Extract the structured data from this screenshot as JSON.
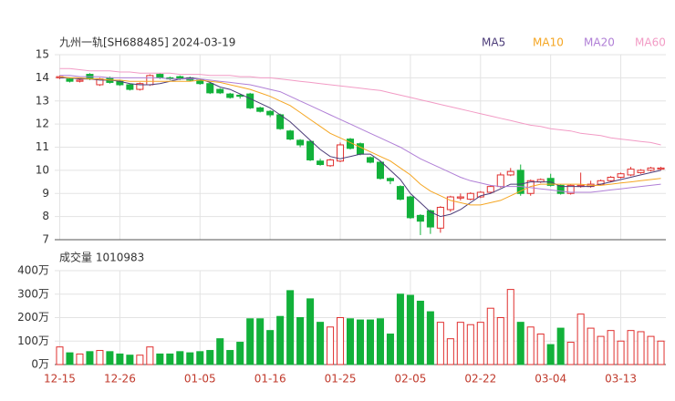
{
  "chart_data": [
    {
      "type": "candlestick",
      "title": "九州一轨[SH688485] 2024-03-19",
      "ylim": [
        7,
        15
      ],
      "yticks": [
        7,
        8,
        9,
        10,
        11,
        12,
        13,
        14,
        15
      ],
      "grid": true,
      "up_color": "#e0302f",
      "down_color": "#12b13a",
      "open": [
        14.0,
        13.95,
        13.85,
        14.15,
        13.7,
        14.0,
        13.85,
        13.7,
        13.5,
        13.7,
        14.15,
        14.0,
        14.05,
        14.0,
        13.9,
        13.75,
        13.5,
        13.3,
        13.25,
        13.3,
        12.7,
        12.55,
        12.4,
        11.7,
        11.3,
        11.25,
        10.4,
        10.2,
        10.4,
        11.35,
        11.15,
        10.55,
        10.35,
        9.65,
        9.3,
        8.85,
        8.05,
        8.25,
        7.5,
        8.3,
        8.8,
        8.75,
        8.85,
        9.05,
        9.3,
        9.8,
        10.0,
        9.0,
        9.5,
        9.65,
        9.35,
        9.0,
        9.3,
        9.3,
        9.4,
        9.55,
        9.7,
        9.8,
        9.9,
        10.0,
        10.05
      ],
      "high": [
        14.1,
        14.0,
        13.95,
        14.2,
        14.0,
        14.05,
        13.9,
        13.75,
        13.8,
        14.15,
        14.2,
        14.05,
        14.1,
        14.05,
        13.95,
        13.8,
        13.55,
        13.35,
        13.3,
        13.35,
        12.75,
        12.6,
        12.45,
        11.75,
        11.35,
        11.3,
        10.5,
        10.5,
        11.2,
        11.4,
        11.2,
        10.6,
        10.4,
        9.7,
        9.35,
        8.9,
        8.1,
        8.3,
        8.45,
        8.9,
        9.0,
        9.05,
        9.1,
        9.35,
        9.9,
        10.1,
        10.25,
        9.6,
        9.65,
        9.85,
        9.4,
        9.4,
        9.9,
        9.55,
        9.6,
        9.75,
        9.9,
        10.15,
        10.05,
        10.15,
        10.15
      ],
      "low": [
        13.95,
        13.8,
        13.8,
        13.9,
        13.65,
        13.75,
        13.65,
        13.45,
        13.45,
        13.65,
        13.95,
        13.9,
        13.9,
        13.85,
        13.7,
        13.3,
        13.3,
        13.1,
        13.1,
        12.65,
        12.5,
        12.3,
        11.75,
        11.3,
        11.0,
        10.4,
        10.2,
        10.15,
        10.35,
        10.9,
        10.65,
        10.3,
        9.6,
        9.4,
        8.7,
        7.9,
        7.2,
        7.25,
        7.3,
        8.2,
        8.7,
        8.7,
        8.8,
        9.0,
        9.25,
        9.75,
        8.9,
        8.9,
        9.45,
        9.3,
        8.95,
        8.95,
        9.25,
        9.25,
        9.35,
        9.5,
        9.65,
        9.75,
        9.85,
        9.95,
        10.0
      ],
      "close": [
        14.05,
        13.85,
        13.9,
        13.95,
        13.95,
        13.8,
        13.7,
        13.5,
        13.75,
        14.1,
        14.0,
        13.95,
        13.95,
        13.9,
        13.75,
        13.35,
        13.35,
        13.15,
        13.2,
        12.7,
        12.55,
        12.4,
        11.8,
        11.35,
        11.1,
        10.45,
        10.25,
        10.45,
        11.1,
        10.95,
        10.7,
        10.35,
        9.65,
        9.55,
        8.75,
        7.95,
        7.8,
        7.55,
        8.4,
        8.85,
        8.85,
        9.0,
        9.05,
        9.3,
        9.8,
        9.95,
        9.0,
        9.55,
        9.6,
        9.35,
        9.0,
        9.35,
        9.35,
        9.4,
        9.55,
        9.7,
        9.85,
        10.05,
        10.0,
        10.1,
        10.1
      ],
      "series": [
        {
          "name": "MA5",
          "color": "#4b3b78",
          "values": [
            14.0,
            14.0,
            13.95,
            13.95,
            13.9,
            13.9,
            13.85,
            13.75,
            13.7,
            13.7,
            13.75,
            13.85,
            13.95,
            14.0,
            13.95,
            13.8,
            13.6,
            13.5,
            13.3,
            13.1,
            12.9,
            12.7,
            12.4,
            12.1,
            11.7,
            11.3,
            10.9,
            10.6,
            10.5,
            10.6,
            10.7,
            10.7,
            10.4,
            10.0,
            9.6,
            9.0,
            8.6,
            8.2,
            8.0,
            8.1,
            8.3,
            8.6,
            8.9,
            9.0,
            9.2,
            9.4,
            9.4,
            9.5,
            9.5,
            9.5,
            9.3,
            9.3,
            9.3,
            9.3,
            9.4,
            9.5,
            9.6,
            9.7,
            9.8,
            9.9,
            10.0
          ]
        },
        {
          "name": "MA10",
          "color": "#f5a623",
          "values": [
            14.05,
            14.0,
            14.0,
            13.95,
            13.95,
            13.9,
            13.9,
            13.85,
            13.85,
            13.85,
            13.85,
            13.85,
            13.85,
            13.85,
            13.9,
            13.85,
            13.8,
            13.7,
            13.6,
            13.5,
            13.35,
            13.2,
            13.0,
            12.8,
            12.5,
            12.2,
            11.9,
            11.6,
            11.4,
            11.2,
            11.0,
            10.8,
            10.6,
            10.4,
            10.1,
            9.8,
            9.4,
            9.1,
            8.9,
            8.7,
            8.6,
            8.5,
            8.5,
            8.6,
            8.7,
            8.9,
            9.1,
            9.3,
            9.4,
            9.4,
            9.4,
            9.4,
            9.4,
            9.35,
            9.35,
            9.4,
            9.45,
            9.5,
            9.55,
            9.6,
            9.65
          ]
        },
        {
          "name": "MA20",
          "color": "#b07fd6",
          "values": [
            14.1,
            14.1,
            14.05,
            14.05,
            14.05,
            14.0,
            14.0,
            14.0,
            14.0,
            14.0,
            14.0,
            13.95,
            13.95,
            13.95,
            13.95,
            13.9,
            13.85,
            13.8,
            13.75,
            13.7,
            13.6,
            13.5,
            13.4,
            13.2,
            13.0,
            12.8,
            12.6,
            12.4,
            12.2,
            12.0,
            11.8,
            11.6,
            11.4,
            11.2,
            11.0,
            10.75,
            10.5,
            10.3,
            10.1,
            9.9,
            9.7,
            9.55,
            9.45,
            9.35,
            9.3,
            9.3,
            9.3,
            9.25,
            9.2,
            9.15,
            9.1,
            9.05,
            9.05,
            9.05,
            9.1,
            9.15,
            9.2,
            9.25,
            9.3,
            9.35,
            9.4
          ]
        },
        {
          "name": "MA60",
          "color": "#f29bc5",
          "values": [
            14.4,
            14.4,
            14.35,
            14.3,
            14.3,
            14.3,
            14.25,
            14.25,
            14.2,
            14.2,
            14.2,
            14.2,
            14.15,
            14.15,
            14.15,
            14.1,
            14.1,
            14.1,
            14.05,
            14.05,
            14.0,
            14.0,
            13.95,
            13.9,
            13.85,
            13.8,
            13.75,
            13.7,
            13.65,
            13.6,
            13.55,
            13.5,
            13.45,
            13.35,
            13.25,
            13.15,
            13.05,
            12.95,
            12.85,
            12.75,
            12.65,
            12.55,
            12.45,
            12.35,
            12.25,
            12.15,
            12.05,
            11.95,
            11.9,
            11.8,
            11.75,
            11.7,
            11.6,
            11.55,
            11.5,
            11.4,
            11.35,
            11.3,
            11.25,
            11.2,
            11.1
          ]
        }
      ]
    },
    {
      "type": "bar",
      "title": "成交量 1010983",
      "ylim": [
        0,
        400
      ],
      "yticks": [
        {
          "value": 0,
          "label": "0万"
        },
        {
          "value": 100,
          "label": "100万"
        },
        {
          "value": 200,
          "label": "200万"
        },
        {
          "value": 300,
          "label": "300万"
        },
        {
          "value": 400,
          "label": "400万"
        }
      ],
      "grid": true,
      "categories": [
        "12-15",
        null,
        null,
        null,
        null,
        null,
        "12-26",
        null,
        null,
        null,
        null,
        null,
        null,
        null,
        "01-05",
        null,
        null,
        null,
        null,
        null,
        null,
        "01-16",
        null,
        null,
        null,
        null,
        null,
        null,
        "01-25",
        null,
        null,
        null,
        null,
        null,
        null,
        "02-05",
        null,
        null,
        null,
        null,
        null,
        null,
        "02-22",
        null,
        null,
        null,
        null,
        null,
        null,
        "03-04",
        null,
        null,
        null,
        null,
        null,
        null,
        "03-13",
        null,
        null,
        null,
        null
      ],
      "values": [
        75,
        50,
        45,
        55,
        60,
        55,
        45,
        40,
        40,
        75,
        45,
        45,
        55,
        50,
        55,
        60,
        110,
        60,
        95,
        195,
        195,
        145,
        205,
        315,
        200,
        280,
        180,
        160,
        200,
        195,
        190,
        190,
        195,
        130,
        300,
        295,
        270,
        225,
        180,
        110,
        180,
        170,
        180,
        240,
        200,
        320,
        180,
        160,
        130,
        85,
        155,
        95,
        215,
        155,
        120,
        145,
        100,
        145,
        140,
        120,
        100
      ]
    }
  ]
}
